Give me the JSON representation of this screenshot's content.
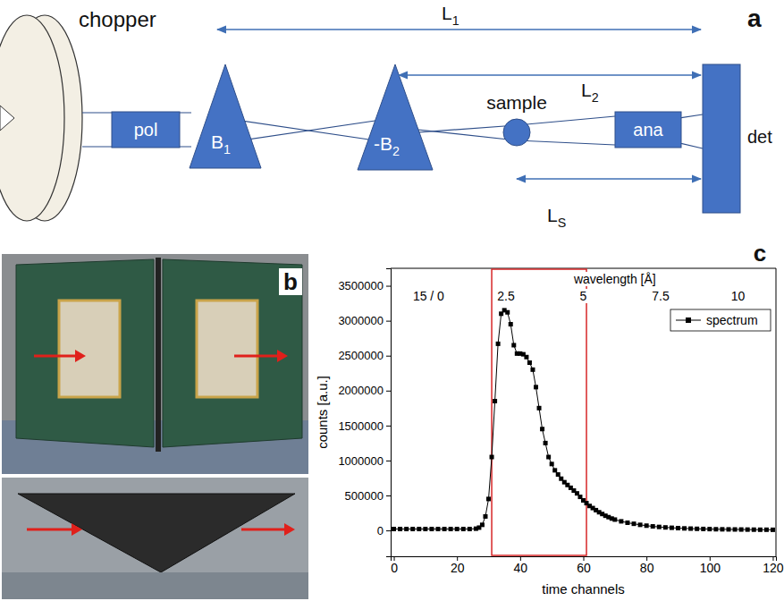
{
  "panel_letters": [
    "a",
    "b",
    "c"
  ],
  "diagram": {
    "labels": {
      "chopper": "chopper",
      "polarizer": "pol",
      "magnet_1": {
        "text": "B",
        "subscript": "1"
      },
      "magnet_2": {
        "text": "-B",
        "subscript": "2"
      },
      "sample": "sample",
      "analyzer": "ana",
      "detector": "det",
      "L1": {
        "text": "L",
        "subscript": "1"
      },
      "L2": {
        "text": "L",
        "subscript": "2"
      },
      "LS": {
        "text": "L",
        "subscript": "S"
      }
    }
  },
  "chart_data": {
    "type": "line",
    "x_label": "time channels",
    "y_label": "counts [a.u.]",
    "x2_label": "wavelength [Å]",
    "x": [
      0,
      2,
      4,
      6,
      8,
      10,
      12,
      14,
      16,
      18,
      20,
      22,
      24,
      26,
      27,
      28,
      29,
      30,
      31,
      32,
      33,
      34,
      35,
      36,
      37,
      38,
      39,
      40,
      41,
      42,
      43,
      44,
      45,
      46,
      47,
      48,
      49,
      50,
      51,
      52,
      53,
      54,
      55,
      56,
      57,
      58,
      59,
      60,
      61,
      62,
      63,
      64,
      65,
      66,
      67,
      68,
      69,
      70,
      72,
      74,
      76,
      78,
      80,
      82,
      84,
      86,
      88,
      90,
      92,
      94,
      96,
      98,
      100,
      102,
      104,
      106,
      108,
      110,
      112,
      114,
      116,
      118,
      120
    ],
    "series": [
      {
        "name": "spectrum",
        "color": "#000000",
        "marker": "square",
        "line_style": "solid",
        "values": [
          20000,
          20000,
          20000,
          20000,
          20000,
          20000,
          20000,
          20000,
          20000,
          20000,
          20000,
          20000,
          20000,
          25000,
          40000,
          80000,
          200000,
          450000,
          1050000,
          1850000,
          2670000,
          3100000,
          3150000,
          3120000,
          2950000,
          2650000,
          2530000,
          2530000,
          2520000,
          2480000,
          2400000,
          2300000,
          2050000,
          1750000,
          1450000,
          1250000,
          1050000,
          950000,
          860000,
          800000,
          740000,
          690000,
          650000,
          610000,
          570000,
          530000,
          480000,
          430000,
          390000,
          350000,
          320000,
          290000,
          260000,
          235000,
          210000,
          190000,
          170000,
          155000,
          130000,
          110000,
          95000,
          80000,
          68000,
          58000,
          50000,
          43000,
          38000,
          33000,
          29000,
          26000,
          23000,
          21000,
          19000,
          17000,
          16000,
          15000,
          14000,
          13000,
          12000,
          11000,
          10000,
          10000,
          9000
        ]
      }
    ],
    "xlim": [
      -1,
      121
    ],
    "xticks": [
      0,
      20,
      40,
      60,
      80,
      100,
      120
    ],
    "ylim": [
      -370000,
      3750000
    ],
    "yticks": [
      0,
      500000,
      1000000,
      1500000,
      2000000,
      2500000,
      3000000,
      3500000
    ],
    "x2ticks": [
      {
        "value": 11,
        "label": "15 / 0"
      },
      {
        "value": 35.5,
        "label": "2.5"
      },
      {
        "value": 60,
        "label": "5"
      },
      {
        "value": 84.5,
        "label": "7.5"
      },
      {
        "value": 109,
        "label": "10"
      }
    ],
    "annotations": [
      {
        "type": "rectangle",
        "x_range": [
          31,
          61
        ],
        "color": "#d62728"
      }
    ],
    "legend": "upper right",
    "grid": false
  }
}
